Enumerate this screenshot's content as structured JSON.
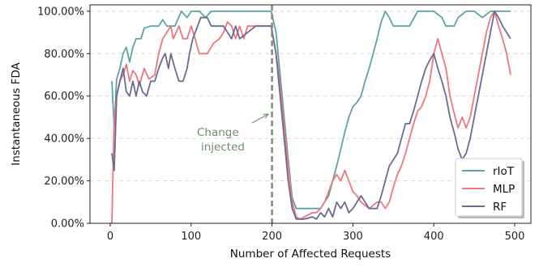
{
  "chart_data": {
    "type": "line",
    "xlabel": "Number of Affected Requests",
    "ylabel": "Instantaneous FDA",
    "xlim": [
      -25,
      520
    ],
    "ylim": [
      0,
      1.03
    ],
    "x_ticks": [
      0,
      100,
      200,
      300,
      400,
      500
    ],
    "y_ticks": [
      0,
      0.2,
      0.4,
      0.6,
      0.8,
      1.0
    ],
    "y_tick_labels": [
      "0.00%",
      "20.00%",
      "40.00%",
      "60.00%",
      "80.00%",
      "100.00%"
    ],
    "grid": "horizontal dashed",
    "legend_position": "bottom-right",
    "change_point": 200,
    "annotation": {
      "line1": "Change",
      "line2": "injected",
      "color": "#6b8f6b"
    },
    "series": [
      {
        "name": "rIoT",
        "color": "#5fa2a6",
        "points": [
          [
            2,
            0.67
          ],
          [
            5,
            0.45
          ],
          [
            8,
            0.68
          ],
          [
            12,
            0.73
          ],
          [
            16,
            0.8
          ],
          [
            20,
            0.83
          ],
          [
            24,
            0.76
          ],
          [
            28,
            0.83
          ],
          [
            32,
            0.87
          ],
          [
            38,
            0.87
          ],
          [
            42,
            0.92
          ],
          [
            50,
            0.93
          ],
          [
            60,
            0.93
          ],
          [
            65,
            0.96
          ],
          [
            70,
            0.93
          ],
          [
            80,
            0.93
          ],
          [
            88,
            1.0
          ],
          [
            95,
            0.97
          ],
          [
            100,
            1.0
          ],
          [
            110,
            1.0
          ],
          [
            118,
            0.97
          ],
          [
            125,
            1.0
          ],
          [
            140,
            1.0
          ],
          [
            150,
            1.0
          ],
          [
            160,
            1.0
          ],
          [
            170,
            1.0
          ],
          [
            180,
            1.0
          ],
          [
            190,
            1.0
          ],
          [
            199,
            1.0
          ],
          [
            205,
            0.9
          ],
          [
            210,
            0.7
          ],
          [
            215,
            0.5
          ],
          [
            220,
            0.3
          ],
          [
            225,
            0.12
          ],
          [
            230,
            0.07
          ],
          [
            240,
            0.07
          ],
          [
            250,
            0.07
          ],
          [
            260,
            0.07
          ],
          [
            265,
            0.1
          ],
          [
            270,
            0.13
          ],
          [
            275,
            0.2
          ],
          [
            280,
            0.27
          ],
          [
            285,
            0.35
          ],
          [
            290,
            0.43
          ],
          [
            295,
            0.5
          ],
          [
            300,
            0.55
          ],
          [
            305,
            0.57
          ],
          [
            310,
            0.6
          ],
          [
            315,
            0.67
          ],
          [
            320,
            0.73
          ],
          [
            325,
            0.8
          ],
          [
            330,
            0.87
          ],
          [
            335,
            0.95
          ],
          [
            340,
            1.0
          ],
          [
            345,
            0.97
          ],
          [
            350,
            0.93
          ],
          [
            360,
            0.93
          ],
          [
            370,
            0.93
          ],
          [
            380,
            1.0
          ],
          [
            390,
            1.0
          ],
          [
            400,
            1.0
          ],
          [
            410,
            0.97
          ],
          [
            415,
            0.93
          ],
          [
            425,
            0.93
          ],
          [
            430,
            0.97
          ],
          [
            440,
            1.0
          ],
          [
            450,
            1.0
          ],
          [
            460,
            0.97
          ],
          [
            470,
            1.0
          ],
          [
            480,
            1.0
          ],
          [
            490,
            1.0
          ],
          [
            495,
            1.0
          ]
        ]
      },
      {
        "name": "MLP",
        "color": "#ef767d",
        "points": [
          [
            2,
            0.0
          ],
          [
            5,
            0.5
          ],
          [
            8,
            0.6
          ],
          [
            12,
            0.67
          ],
          [
            16,
            0.7
          ],
          [
            20,
            0.75
          ],
          [
            24,
            0.67
          ],
          [
            28,
            0.72
          ],
          [
            32,
            0.7
          ],
          [
            36,
            0.65
          ],
          [
            42,
            0.73
          ],
          [
            48,
            0.68
          ],
          [
            55,
            0.7
          ],
          [
            60,
            0.8
          ],
          [
            65,
            0.87
          ],
          [
            70,
            0.9
          ],
          [
            75,
            0.93
          ],
          [
            78,
            0.87
          ],
          [
            85,
            0.93
          ],
          [
            90,
            0.87
          ],
          [
            95,
            0.87
          ],
          [
            100,
            0.93
          ],
          [
            105,
            0.87
          ],
          [
            110,
            0.8
          ],
          [
            120,
            0.8
          ],
          [
            128,
            0.85
          ],
          [
            135,
            0.87
          ],
          [
            140,
            0.9
          ],
          [
            145,
            0.95
          ],
          [
            150,
            0.93
          ],
          [
            155,
            0.87
          ],
          [
            160,
            0.93
          ],
          [
            165,
            0.87
          ],
          [
            170,
            0.93
          ],
          [
            180,
            0.93
          ],
          [
            190,
            0.93
          ],
          [
            199,
            0.93
          ],
          [
            205,
            0.8
          ],
          [
            210,
            0.65
          ],
          [
            215,
            0.45
          ],
          [
            220,
            0.27
          ],
          [
            225,
            0.1
          ],
          [
            230,
            0.03
          ],
          [
            235,
            0.02
          ],
          [
            240,
            0.03
          ],
          [
            250,
            0.05
          ],
          [
            255,
            0.05
          ],
          [
            260,
            0.07
          ],
          [
            265,
            0.1
          ],
          [
            270,
            0.15
          ],
          [
            275,
            0.2
          ],
          [
            280,
            0.23
          ],
          [
            285,
            0.2
          ],
          [
            290,
            0.25
          ],
          [
            295,
            0.2
          ],
          [
            300,
            0.15
          ],
          [
            305,
            0.13
          ],
          [
            310,
            0.1
          ],
          [
            320,
            0.07
          ],
          [
            330,
            0.1
          ],
          [
            335,
            0.1
          ],
          [
            340,
            0.07
          ],
          [
            345,
            0.1
          ],
          [
            350,
            0.17
          ],
          [
            355,
            0.23
          ],
          [
            360,
            0.27
          ],
          [
            365,
            0.33
          ],
          [
            370,
            0.4
          ],
          [
            375,
            0.47
          ],
          [
            380,
            0.53
          ],
          [
            385,
            0.55
          ],
          [
            390,
            0.6
          ],
          [
            395,
            0.67
          ],
          [
            400,
            0.8
          ],
          [
            405,
            0.87
          ],
          [
            410,
            0.8
          ],
          [
            415,
            0.73
          ],
          [
            420,
            0.6
          ],
          [
            425,
            0.52
          ],
          [
            430,
            0.45
          ],
          [
            435,
            0.5
          ],
          [
            440,
            0.45
          ],
          [
            445,
            0.5
          ],
          [
            450,
            0.6
          ],
          [
            455,
            0.7
          ],
          [
            460,
            0.8
          ],
          [
            465,
            0.9
          ],
          [
            470,
            0.97
          ],
          [
            475,
            1.0
          ],
          [
            480,
            0.93
          ],
          [
            485,
            0.87
          ],
          [
            490,
            0.8
          ],
          [
            495,
            0.7
          ]
        ]
      },
      {
        "name": "RF",
        "color": "#6b6a93",
        "points": [
          [
            2,
            0.33
          ],
          [
            5,
            0.25
          ],
          [
            8,
            0.6
          ],
          [
            12,
            0.67
          ],
          [
            16,
            0.73
          ],
          [
            20,
            0.62
          ],
          [
            24,
            0.6
          ],
          [
            28,
            0.67
          ],
          [
            32,
            0.6
          ],
          [
            36,
            0.67
          ],
          [
            40,
            0.62
          ],
          [
            45,
            0.6
          ],
          [
            50,
            0.67
          ],
          [
            55,
            0.67
          ],
          [
            60,
            0.73
          ],
          [
            65,
            0.78
          ],
          [
            68,
            0.8
          ],
          [
            72,
            0.73
          ],
          [
            75,
            0.8
          ],
          [
            80,
            0.73
          ],
          [
            85,
            0.67
          ],
          [
            90,
            0.67
          ],
          [
            95,
            0.73
          ],
          [
            98,
            0.8
          ],
          [
            102,
            0.87
          ],
          [
            108,
            0.93
          ],
          [
            112,
            0.97
          ],
          [
            120,
            0.97
          ],
          [
            125,
            0.93
          ],
          [
            130,
            0.93
          ],
          [
            140,
            0.93
          ],
          [
            150,
            0.87
          ],
          [
            155,
            0.93
          ],
          [
            160,
            0.87
          ],
          [
            170,
            0.9
          ],
          [
            180,
            0.93
          ],
          [
            190,
            0.93
          ],
          [
            199,
            0.93
          ],
          [
            205,
            0.8
          ],
          [
            210,
            0.6
          ],
          [
            215,
            0.4
          ],
          [
            220,
            0.2
          ],
          [
            225,
            0.07
          ],
          [
            230,
            0.02
          ],
          [
            240,
            0.02
          ],
          [
            250,
            0.03
          ],
          [
            255,
            0.02
          ],
          [
            260,
            0.05
          ],
          [
            265,
            0.03
          ],
          [
            270,
            0.07
          ],
          [
            275,
            0.03
          ],
          [
            280,
            0.1
          ],
          [
            285,
            0.07
          ],
          [
            290,
            0.1
          ],
          [
            295,
            0.05
          ],
          [
            300,
            0.07
          ],
          [
            305,
            0.1
          ],
          [
            310,
            0.13
          ],
          [
            315,
            0.1
          ],
          [
            320,
            0.07
          ],
          [
            330,
            0.07
          ],
          [
            335,
            0.13
          ],
          [
            340,
            0.2
          ],
          [
            345,
            0.27
          ],
          [
            350,
            0.3
          ],
          [
            355,
            0.33
          ],
          [
            360,
            0.4
          ],
          [
            365,
            0.47
          ],
          [
            370,
            0.47
          ],
          [
            375,
            0.53
          ],
          [
            380,
            0.6
          ],
          [
            385,
            0.67
          ],
          [
            390,
            0.73
          ],
          [
            395,
            0.77
          ],
          [
            400,
            0.8
          ],
          [
            405,
            0.73
          ],
          [
            410,
            0.67
          ],
          [
            415,
            0.6
          ],
          [
            420,
            0.5
          ],
          [
            425,
            0.43
          ],
          [
            430,
            0.35
          ],
          [
            435,
            0.3
          ],
          [
            440,
            0.33
          ],
          [
            445,
            0.4
          ],
          [
            450,
            0.5
          ],
          [
            455,
            0.6
          ],
          [
            460,
            0.7
          ],
          [
            465,
            0.8
          ],
          [
            470,
            0.9
          ],
          [
            475,
            1.0
          ],
          [
            480,
            0.97
          ],
          [
            485,
            0.93
          ],
          [
            490,
            0.9
          ],
          [
            495,
            0.87
          ]
        ]
      }
    ]
  }
}
